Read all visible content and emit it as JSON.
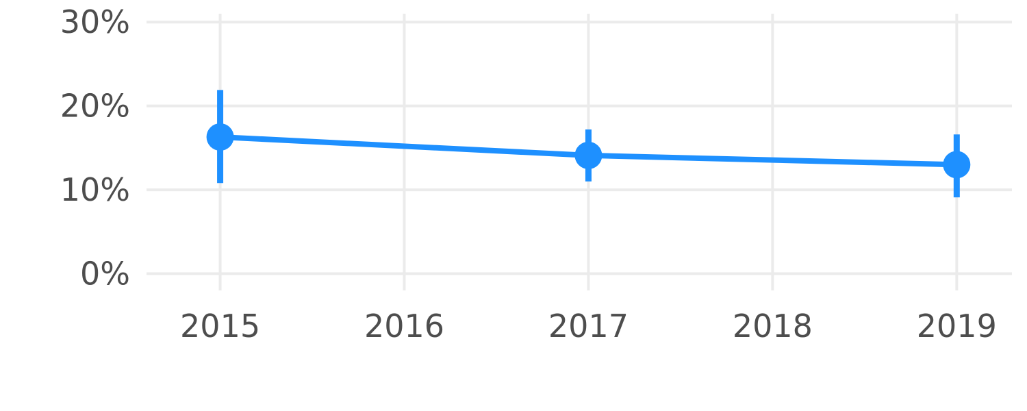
{
  "chart_data": {
    "type": "line",
    "title": "",
    "xlabel": "",
    "ylabel": "",
    "x_ticks": [
      "2015",
      "2016",
      "2017",
      "2018",
      "2019"
    ],
    "y_ticks": [
      "0%",
      "10%",
      "20%",
      "30%"
    ],
    "xlim": [
      2014.6,
      2019.3
    ],
    "ylim": [
      -0.02,
      0.31
    ],
    "grid": true,
    "legend": "none",
    "series": [
      {
        "color": "#1E90FF",
        "points": [
          {
            "x": 2015,
            "y": 0.163,
            "lower": 0.108,
            "upper": 0.219
          },
          {
            "x": 2017,
            "y": 0.141,
            "lower": 0.11,
            "upper": 0.172
          },
          {
            "x": 2019,
            "y": 0.13,
            "lower": 0.091,
            "upper": 0.166
          }
        ]
      }
    ]
  }
}
